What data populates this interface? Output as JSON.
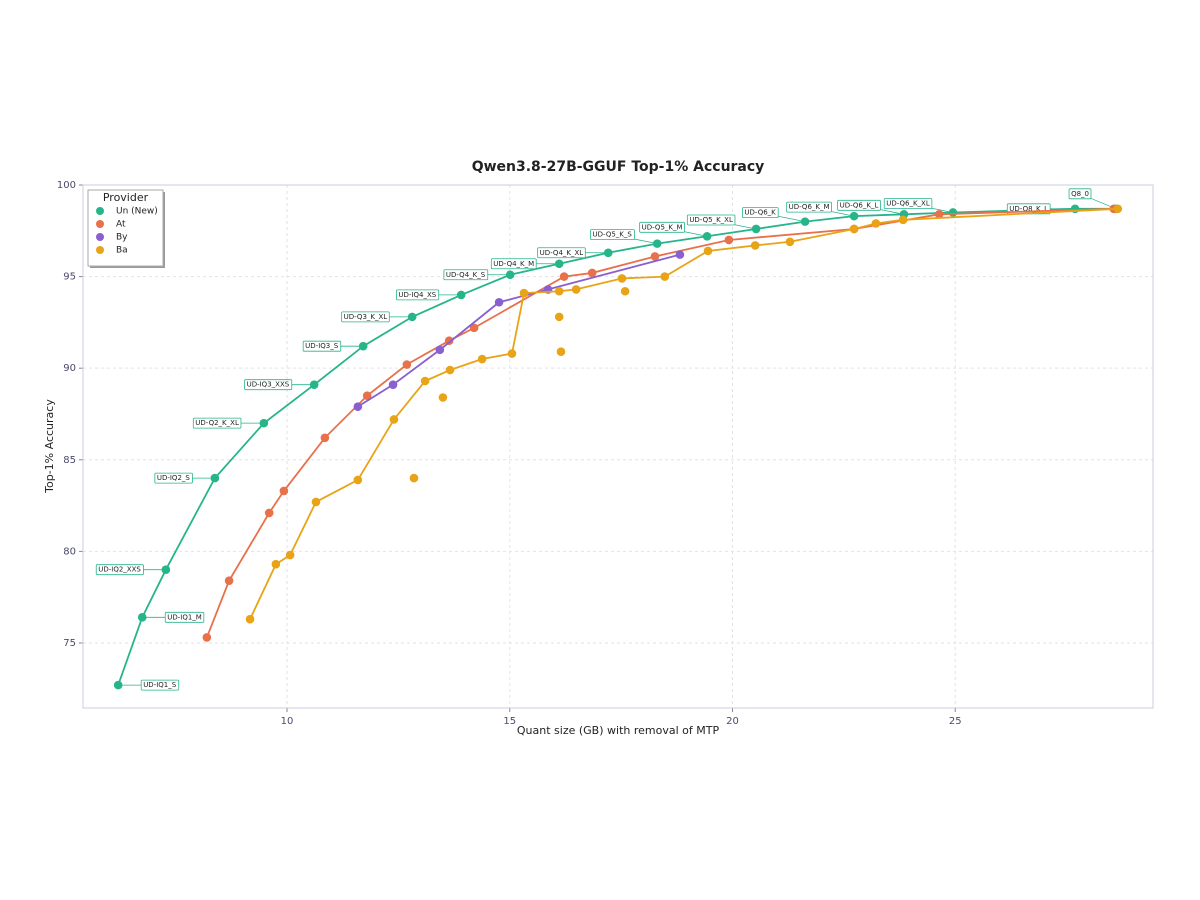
{
  "chart_data": {
    "type": "line",
    "title": "Qwen3.8-27B-GGUF Top-1% Accuracy",
    "x_label": "Quant size (GB) with removal of MTP",
    "y_label": "Top-1% Accuracy",
    "xlim": [
      5.42,
      29.44
    ],
    "ylim": [
      71.45,
      100
    ],
    "xticks": [
      10,
      15,
      20,
      25
    ],
    "yticks": [
      75,
      80,
      85,
      90,
      95,
      100
    ],
    "grid": true,
    "legend": {
      "title": "Provider",
      "loc": "upper left"
    },
    "series": [
      {
        "name": "Un (New)",
        "color": "#26b58a",
        "x": [
          6.21,
          6.75,
          7.28,
          8.38,
          9.48,
          10.61,
          11.71,
          12.81,
          13.91,
          15.01,
          16.11,
          17.21,
          18.31,
          19.43,
          20.53,
          21.63,
          22.73,
          23.85,
          24.95,
          27.69,
          28.61
        ],
        "values": [
          72.7,
          76.4,
          79.0,
          84.0,
          87.0,
          89.1,
          91.2,
          92.8,
          94.0,
          95.1,
          95.7,
          96.3,
          96.8,
          97.2,
          97.6,
          98.0,
          98.3,
          98.4,
          98.5,
          98.7,
          98.7
        ],
        "point_labels": [
          "UD-IQ1_S",
          "UD-IQ1_M",
          "UD-IQ2_XXS",
          "UD-IQ2_S",
          "UD-Q2_K_XL",
          "UD-IQ3_XXS",
          "UD-IQ3_S",
          "UD-Q3_K_XL",
          "UD-IQ4_XS",
          "UD-Q4_K_S",
          "UD-Q4_K_M",
          "UD-Q4_K_XL",
          "UD-Q5_K_S",
          "UD-Q5_K_M",
          "UD-Q5_K_XL",
          "UD-Q6_K",
          "UD-Q6_K_M",
          "UD-Q6_K_L",
          "UD-Q6_K_XL",
          "UD-Q8_K_L",
          "Q8_0"
        ]
      },
      {
        "name": "At",
        "color": "#e8704a",
        "x": [
          8.2,
          8.7,
          9.6,
          9.93,
          10.85,
          11.8,
          12.69,
          13.64,
          14.2,
          16.22,
          16.85,
          18.26,
          19.92,
          22.73,
          24.64,
          28.56
        ],
        "values": [
          75.3,
          78.4,
          82.1,
          83.3,
          86.2,
          88.5,
          90.2,
          91.5,
          92.2,
          95.0,
          95.2,
          96.1,
          97.0,
          97.6,
          98.4,
          98.7
        ]
      },
      {
        "name": "By",
        "color": "#8a5fd0",
        "x": [
          11.59,
          12.38,
          13.43,
          14.76,
          15.86,
          18.82
        ],
        "values": [
          87.9,
          89.1,
          91.0,
          93.6,
          94.3,
          96.2
        ]
      },
      {
        "name": "Ba",
        "color": "#e8a317",
        "x": [
          9.17,
          9.75,
          10.07,
          10.65,
          11.59,
          12.4,
          13.1,
          13.66,
          14.38,
          15.05,
          15.32,
          16.11,
          16.49,
          17.52,
          18.48,
          19.45,
          20.51,
          21.29,
          22.73,
          23.22,
          23.83,
          28.65,
          null,
          12.85,
          null,
          13.5,
          null,
          16.11,
          null,
          16.15,
          null,
          17.59
        ],
        "values": [
          76.3,
          79.3,
          79.8,
          82.7,
          83.9,
          87.2,
          89.3,
          89.9,
          90.5,
          90.8,
          94.1,
          94.2,
          94.3,
          94.9,
          95.0,
          96.4,
          96.7,
          96.9,
          97.6,
          97.9,
          98.1,
          98.7,
          null,
          84.0,
          null,
          88.4,
          null,
          92.8,
          null,
          90.9,
          null,
          94.2
        ]
      }
    ]
  }
}
